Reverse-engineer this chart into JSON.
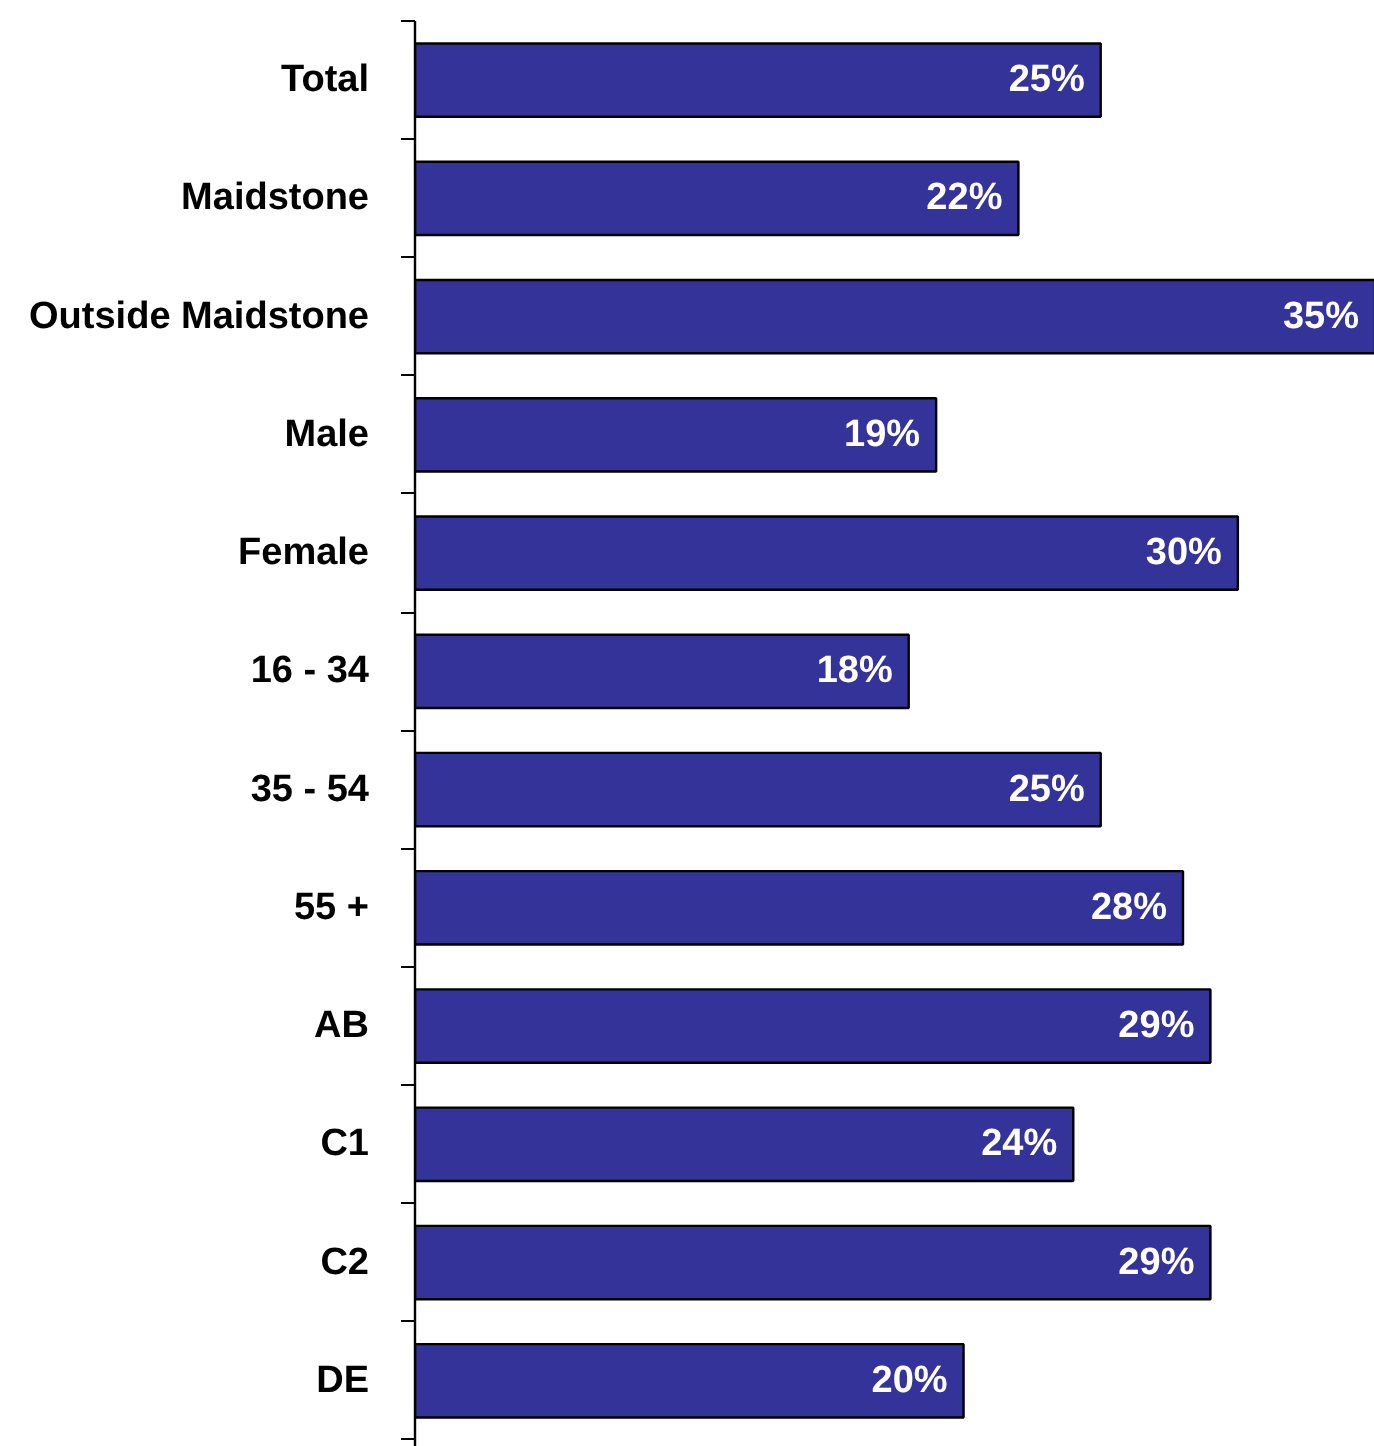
{
  "chart_data": {
    "type": "bar",
    "orientation": "horizontal",
    "categories": [
      "Total",
      "Maidstone",
      "Outside Maidstone",
      "Male",
      "Female",
      "16 - 34",
      "35 - 54",
      "55 +",
      "AB",
      "C1",
      "C2",
      "DE"
    ],
    "values": [
      25,
      22,
      35,
      19,
      30,
      18,
      25,
      28,
      29,
      24,
      29,
      20
    ],
    "value_labels": [
      "25%",
      "22%",
      "35%",
      "19%",
      "30%",
      "18%",
      "25%",
      "28%",
      "29%",
      "24%",
      "29%",
      "20%"
    ],
    "color": "#333399",
    "xlim": [
      0,
      35
    ],
    "tick_labels": "y"
  }
}
